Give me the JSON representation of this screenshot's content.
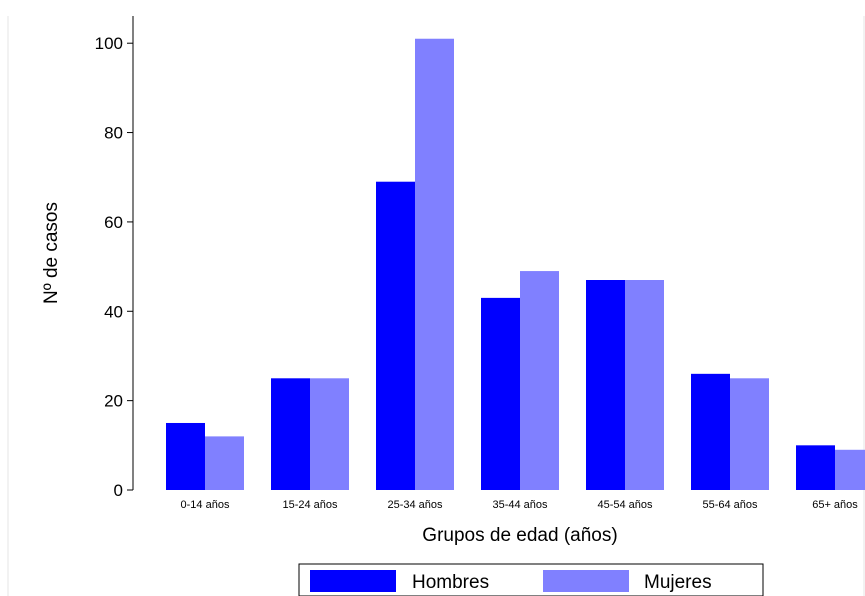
{
  "chart_data": {
    "type": "bar",
    "title": "",
    "xlabel": "Grupos de edad (años)",
    "ylabel": "Nº de casos",
    "categories": [
      "0-14 años",
      "15-24 años",
      "25-34 años",
      "35-44 años",
      "45-54 años",
      "55-64 años",
      "65+ años"
    ],
    "series": [
      {
        "name": "Hombres",
        "color": "#0000ff",
        "values": [
          15,
          25,
          69,
          43,
          47,
          26,
          10
        ]
      },
      {
        "name": "Mujeres",
        "color": "#8080ff",
        "values": [
          12,
          25,
          101,
          49,
          47,
          25,
          9
        ]
      }
    ],
    "ylim": [
      0,
      100
    ],
    "yticks": [
      0,
      20,
      40,
      60,
      80,
      100
    ],
    "grid": false,
    "legend_position": "bottom"
  }
}
